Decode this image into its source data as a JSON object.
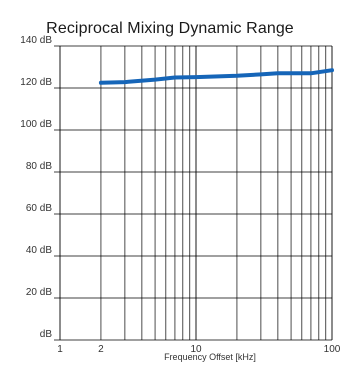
{
  "chart_data": {
    "type": "line",
    "title": "Reciprocal Mixing Dynamic Range",
    "xlabel": "Frequency Offset [kHz]",
    "ylabel": "",
    "xscale": "log",
    "xlim": [
      1,
      100
    ],
    "ylim": [
      0,
      140
    ],
    "grid": true,
    "x_ticks": [
      {
        "value": 1,
        "label": "1"
      },
      {
        "value": 2,
        "label": "2"
      },
      {
        "value": 10,
        "label": "10"
      },
      {
        "value": 100,
        "label": "100"
      }
    ],
    "y_ticks": [
      {
        "value": 0,
        "label": "dB"
      },
      {
        "value": 20,
        "label": "20 dB"
      },
      {
        "value": 40,
        "label": "40 dB"
      },
      {
        "value": 60,
        "label": "60 dB"
      },
      {
        "value": 80,
        "label": "80 dB"
      },
      {
        "value": 100,
        "label": "100 dB"
      },
      {
        "value": 120,
        "label": "120 dB"
      },
      {
        "value": 140,
        "label": "140 dB"
      }
    ],
    "series": [
      {
        "color": "#1565b8",
        "x": [
          2,
          3,
          5,
          7,
          10,
          20,
          30,
          40,
          50,
          70,
          100
        ],
        "y": [
          122.5,
          122.8,
          124,
          125,
          125.2,
          125.8,
          126.5,
          127,
          127,
          127,
          128.5
        ]
      }
    ]
  }
}
